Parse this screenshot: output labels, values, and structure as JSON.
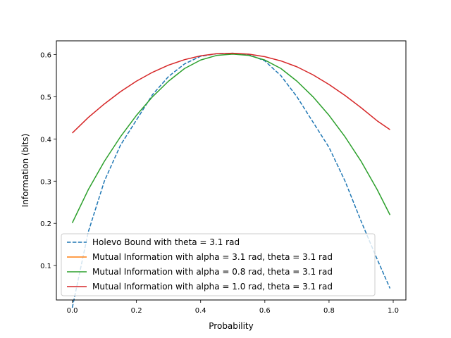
{
  "chart_data": {
    "type": "line",
    "title": "",
    "xlabel": "Probability",
    "ylabel": "Information (bits)",
    "xlim": [
      -0.0495,
      1.0395
    ],
    "ylim": [
      0.0185,
      0.6325
    ],
    "xticks": [
      0.0,
      0.2,
      0.4,
      0.6,
      0.8,
      1.0
    ],
    "xtick_labels": [
      "0.0",
      "0.2",
      "0.4",
      "0.6",
      "0.8",
      "1.0"
    ],
    "yticks": [
      0.1,
      0.2,
      0.3,
      0.4,
      0.5,
      0.6
    ],
    "ytick_labels": [
      "0.1",
      "0.2",
      "0.3",
      "0.4",
      "0.5",
      "0.6"
    ],
    "grid": false,
    "legend_position": "lower-left",
    "series": [
      {
        "name": "Holevo Bound with theta = 3.1 rad",
        "color": "#1f77b4",
        "dash": true,
        "x": [
          0.0,
          0.05,
          0.1,
          0.15,
          0.2,
          0.25,
          0.3,
          0.35,
          0.4,
          0.45,
          0.5,
          0.55,
          0.6,
          0.65,
          0.7,
          0.75,
          0.8,
          0.85,
          0.9,
          0.95,
          0.99
        ],
        "y": [
          0.0,
          0.18,
          0.3,
          0.385,
          0.445,
          0.505,
          0.548,
          0.578,
          0.596,
          0.602,
          0.603,
          0.6,
          0.585,
          0.55,
          0.5,
          0.44,
          0.38,
          0.3,
          0.205,
          0.115,
          0.046
        ]
      },
      {
        "name": "Mutual Information with alpha = 3.1 rad, theta = 3.1 rad",
        "color": "#ff7f0e",
        "dash": false,
        "x": [],
        "y": []
      },
      {
        "name": "Mutual Information with alpha = 0.8 rad, theta = 3.1 rad",
        "color": "#2ca02c",
        "dash": false,
        "x": [
          0.0,
          0.05,
          0.1,
          0.15,
          0.2,
          0.25,
          0.3,
          0.35,
          0.4,
          0.45,
          0.5,
          0.55,
          0.6,
          0.65,
          0.7,
          0.75,
          0.8,
          0.85,
          0.9,
          0.95,
          0.99
        ],
        "y": [
          0.201,
          0.28,
          0.347,
          0.405,
          0.456,
          0.5,
          0.537,
          0.567,
          0.587,
          0.598,
          0.601,
          0.598,
          0.587,
          0.567,
          0.537,
          0.5,
          0.456,
          0.405,
          0.347,
          0.28,
          0.22
        ]
      },
      {
        "name": "Mutual Information with alpha = 1.0 rad, theta = 3.1 rad",
        "color": "#d62728",
        "dash": false,
        "x": [
          0.0,
          0.05,
          0.1,
          0.15,
          0.2,
          0.25,
          0.3,
          0.35,
          0.4,
          0.45,
          0.5,
          0.55,
          0.6,
          0.65,
          0.7,
          0.75,
          0.8,
          0.85,
          0.9,
          0.95,
          0.99
        ],
        "y": [
          0.414,
          0.451,
          0.483,
          0.512,
          0.537,
          0.558,
          0.575,
          0.588,
          0.597,
          0.602,
          0.603,
          0.601,
          0.595,
          0.585,
          0.571,
          0.552,
          0.529,
          0.503,
          0.474,
          0.443,
          0.422
        ]
      }
    ]
  }
}
